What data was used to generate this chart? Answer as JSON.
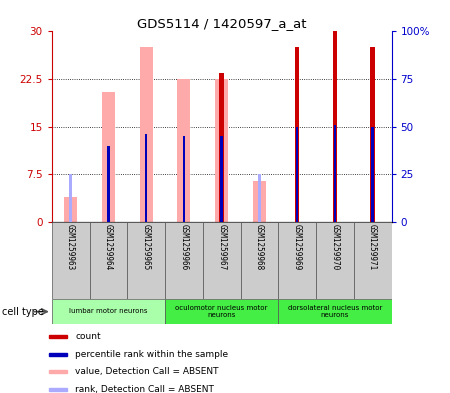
{
  "title": "GDS5114 / 1420597_a_at",
  "samples": [
    "GSM1259963",
    "GSM1259964",
    "GSM1259965",
    "GSM1259966",
    "GSM1259967",
    "GSM1259968",
    "GSM1259969",
    "GSM1259970",
    "GSM1259971"
  ],
  "count_values": [
    null,
    null,
    null,
    null,
    23.5,
    null,
    27.5,
    30.0,
    27.5
  ],
  "rank_pct_values": [
    null,
    40.0,
    46.0,
    45.0,
    45.0,
    null,
    50.0,
    51.0,
    50.0
  ],
  "absent_value_values": [
    4.0,
    20.5,
    27.5,
    22.5,
    22.5,
    6.5,
    null,
    null,
    null
  ],
  "absent_rank_pct_values": [
    25.0,
    null,
    null,
    null,
    null,
    25.0,
    null,
    null,
    null
  ],
  "ylim_left": [
    0,
    30
  ],
  "ylim_right": [
    0,
    100
  ],
  "yticks_left": [
    0,
    7.5,
    15,
    22.5,
    30
  ],
  "yticks_right": [
    0,
    25,
    50,
    75,
    100
  ],
  "ytick_labels_left": [
    "0",
    "7.5",
    "15",
    "22.5",
    "30"
  ],
  "ytick_labels_right": [
    "0",
    "25",
    "50",
    "75",
    "100%"
  ],
  "left_axis_color": "#cc0000",
  "right_axis_color": "#0000cc",
  "count_color": "#cc0000",
  "rank_color": "#0000bb",
  "absent_value_color": "#ffaaaa",
  "absent_rank_color": "#aaaaff",
  "cell_groups": [
    {
      "label": "lumbar motor neurons",
      "start": 0,
      "end": 2,
      "color": "#aaffaa"
    },
    {
      "label": "oculomotor nucleus motor\nneurons",
      "start": 3,
      "end": 5,
      "color": "#44ee44"
    },
    {
      "label": "dorsolateral nucleus motor\nneurons",
      "start": 6,
      "end": 8,
      "color": "#44ee44"
    }
  ],
  "legend_items": [
    {
      "color": "#cc0000",
      "label": "count"
    },
    {
      "color": "#0000bb",
      "label": "percentile rank within the sample"
    },
    {
      "color": "#ffaaaa",
      "label": "value, Detection Call = ABSENT"
    },
    {
      "color": "#aaaaff",
      "label": "rank, Detection Call = ABSENT"
    }
  ]
}
